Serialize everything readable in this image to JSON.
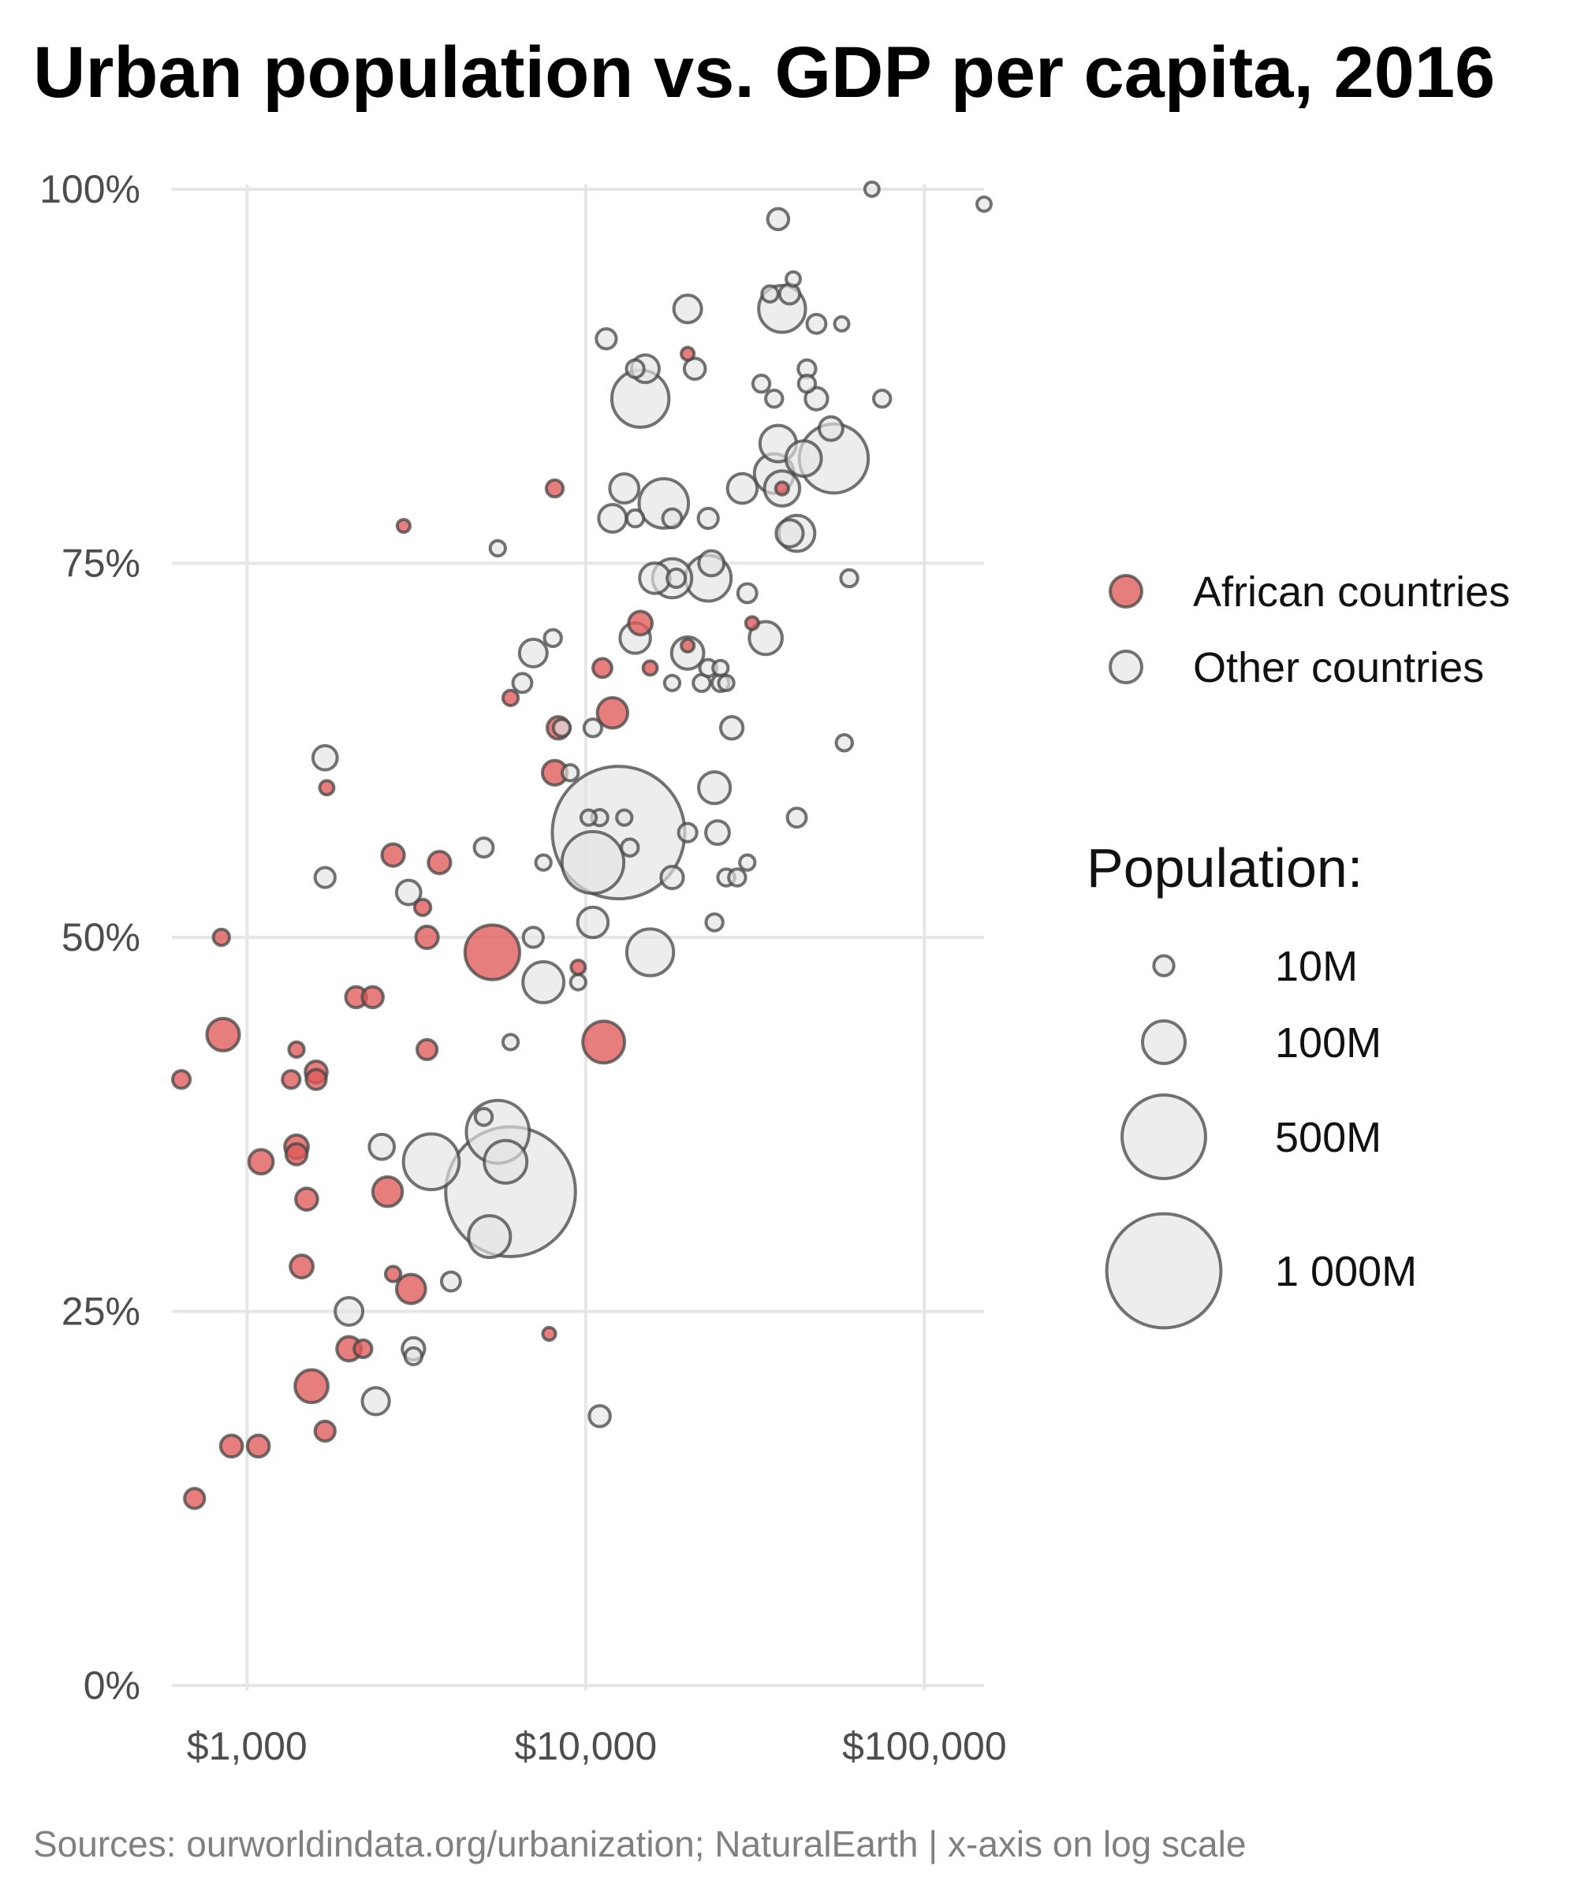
{
  "chart_data": {
    "type": "scatter",
    "title": "Urban population vs. GDP per capita, 2016",
    "caption": "Sources: ourworldindata.org/urbanization; NaturalEarth | x-axis on log scale",
    "x_scale": "log",
    "xlim": [
      600,
      150000
    ],
    "ylim": [
      0,
      100
    ],
    "x_ticks": [
      {
        "value": 1000,
        "label": "$1,000"
      },
      {
        "value": 10000,
        "label": "$10,000"
      },
      {
        "value": 100000,
        "label": "$100,000"
      }
    ],
    "y_ticks": [
      {
        "value": 0,
        "label": "0%"
      },
      {
        "value": 25,
        "label": "25%"
      },
      {
        "value": 50,
        "label": "50%"
      },
      {
        "value": 75,
        "label": "75%"
      },
      {
        "value": 100,
        "label": "100%"
      }
    ],
    "grid": true,
    "colors": {
      "african": "#e05a5a",
      "other": "#e3e3e3",
      "stroke": "#444444"
    },
    "legend": {
      "placement": "right",
      "group_entries": [
        {
          "key": "african",
          "label": "African countries"
        },
        {
          "key": "other",
          "label": "Other countries"
        }
      ],
      "size_title": "Population:",
      "size_entries": [
        {
          "pop": 10,
          "label": "10M"
        },
        {
          "pop": 100,
          "label": "100M"
        },
        {
          "pop": 500,
          "label": "500M"
        },
        {
          "pop": 1000,
          "label": "1 000M"
        }
      ]
    },
    "series": [
      {
        "key": "other",
        "points": [
          [
            12500,
            57,
            1380
          ],
          [
            6000,
            33,
            1320
          ],
          [
            54000,
            82,
            323
          ],
          [
            10500,
            55,
            250
          ],
          [
            5500,
            37,
            260
          ],
          [
            14500,
            86,
            207
          ],
          [
            3500,
            35,
            195
          ],
          [
            15500,
            49,
            127
          ],
          [
            38000,
            92,
            127
          ],
          [
            17000,
            79,
            145
          ],
          [
            23000,
            74,
            120
          ],
          [
            5800,
            35,
            100
          ],
          [
            5200,
            30,
            95
          ],
          [
            7500,
            47,
            90
          ],
          [
            36000,
            81,
            82
          ],
          [
            37000,
            83,
            66
          ],
          [
            38000,
            80,
            60
          ],
          [
            42000,
            77,
            64
          ],
          [
            44000,
            82,
            61
          ],
          [
            18000,
            74,
            80
          ],
          [
            34000,
            70,
            50
          ],
          [
            20000,
            69,
            47
          ],
          [
            24000,
            60,
            45
          ],
          [
            10500,
            51,
            40
          ],
          [
            16000,
            74,
            40
          ],
          [
            14000,
            70,
            40
          ],
          [
            29000,
            80,
            37
          ],
          [
            13000,
            80,
            35
          ],
          [
            20000,
            92,
            30
          ],
          [
            15000,
            88,
            30
          ],
          [
            12000,
            78,
            30
          ],
          [
            7000,
            69,
            30
          ],
          [
            2000,
            25,
            30
          ],
          [
            2400,
            19,
            28
          ],
          [
            2500,
            36,
            22
          ],
          [
            3000,
            53,
            20
          ],
          [
            23500,
            75,
            22
          ],
          [
            40000,
            77,
            28
          ],
          [
            1700,
            62,
            20
          ],
          [
            24500,
            57,
            18
          ],
          [
            3100,
            22.5,
            15
          ],
          [
            37000,
            98,
            12
          ],
          [
            27000,
            64,
            15
          ],
          [
            18000,
            54,
            15
          ],
          [
            21000,
            88,
            12
          ],
          [
            48000,
            86,
            15
          ],
          [
            53000,
            84,
            18
          ],
          [
            11000,
            18,
            12
          ],
          [
            11500,
            90,
            10
          ],
          [
            7000,
            50,
            10
          ],
          [
            1700,
            54,
            10
          ],
          [
            23000,
            78,
            10
          ],
          [
            4000,
            27,
            8
          ],
          [
            5000,
            56,
            8
          ],
          [
            10500,
            64,
            6
          ],
          [
            6500,
            67,
            8
          ],
          [
            18000,
            78,
            8
          ],
          [
            40000,
            93,
            10
          ],
          [
            48000,
            91,
            8
          ],
          [
            30000,
            73,
            8
          ],
          [
            42000,
            58,
            8
          ],
          [
            18500,
            74,
            7
          ],
          [
            20000,
            57,
            7
          ],
          [
            22000,
            67,
            5
          ],
          [
            25000,
            67,
            5
          ],
          [
            26000,
            54,
            5
          ],
          [
            28000,
            54,
            5
          ],
          [
            14000,
            88,
            6
          ],
          [
            24000,
            51,
            5
          ],
          [
            60000,
            74,
            5
          ],
          [
            75000,
            86,
            5
          ],
          [
            45000,
            88,
            6
          ],
          [
            45000,
            87,
            5
          ],
          [
            35000,
            93,
            4
          ],
          [
            41000,
            94,
            2
          ],
          [
            57000,
            91,
            2
          ],
          [
            58000,
            63,
            4
          ],
          [
            70000,
            100,
            2
          ],
          [
            150000,
            99,
            2
          ],
          [
            33000,
            87,
            5
          ],
          [
            36000,
            86,
            5
          ],
          [
            23000,
            68,
            5
          ],
          [
            25000,
            68,
            3
          ],
          [
            8500,
            64,
            5
          ],
          [
            11000,
            58,
            4
          ],
          [
            13000,
            58,
            3
          ],
          [
            10200,
            58,
            3
          ],
          [
            7500,
            55,
            3
          ],
          [
            9500,
            47,
            3
          ],
          [
            5000,
            38,
            5
          ],
          [
            6000,
            43,
            3
          ],
          [
            14000,
            78,
            5
          ],
          [
            8000,
            70,
            5
          ],
          [
            9000,
            61,
            4
          ],
          [
            13500,
            56,
            5
          ],
          [
            18000,
            67,
            3
          ],
          [
            26000,
            67,
            3
          ],
          [
            5500,
            76,
            3
          ],
          [
            3100,
            22,
            5
          ],
          [
            30000,
            55,
            3
          ]
        ]
      },
      {
        "key": "african",
        "points": [
          [
            5300,
            49,
            186
          ],
          [
            11300,
            43,
            95
          ],
          [
            850,
            43.5,
            48
          ],
          [
            1550,
            20,
            50
          ],
          [
            3050,
            26.5,
            35
          ],
          [
            2600,
            33,
            37
          ],
          [
            12000,
            65,
            40
          ],
          [
            1100,
            35,
            20
          ],
          [
            1400,
            36,
            18
          ],
          [
            1450,
            28,
            16
          ],
          [
            1500,
            32.5,
            14
          ],
          [
            1600,
            41,
            14
          ],
          [
            2000,
            22.5,
            20
          ],
          [
            900,
            16,
            14
          ],
          [
            1080,
            16,
            14
          ],
          [
            3400,
            50,
            15
          ],
          [
            3700,
            55,
            15
          ],
          [
            2700,
            55.5,
            15
          ],
          [
            8100,
            61,
            21
          ],
          [
            2100,
            46,
            12
          ],
          [
            2350,
            46,
            12
          ],
          [
            1600,
            40.5,
            10
          ],
          [
            14500,
            71,
            18
          ],
          [
            8300,
            64,
            15
          ],
          [
            3400,
            42.5,
            10
          ],
          [
            700,
            12.5,
            10
          ],
          [
            1700,
            17,
            10
          ],
          [
            640,
            40.5,
            6
          ],
          [
            1400,
            35.5,
            12
          ],
          [
            11200,
            68,
            8
          ],
          [
            1350,
            40.5,
            6
          ],
          [
            2200,
            22.5,
            6
          ],
          [
            8100,
            80,
            5
          ],
          [
            3300,
            52,
            4
          ],
          [
            2700,
            27.5,
            3
          ],
          [
            1400,
            42.5,
            3
          ],
          [
            1720,
            60,
            2
          ],
          [
            15500,
            68,
            2
          ],
          [
            840,
            50,
            4
          ],
          [
            2900,
            77.5,
            1
          ],
          [
            7800,
            23.5,
            1
          ],
          [
            6000,
            66,
            3
          ],
          [
            20000,
            89,
            1
          ],
          [
            9500,
            48,
            2
          ],
          [
            38000,
            80,
            1
          ],
          [
            20000,
            69.5,
            1
          ],
          [
            31000,
            71,
            1
          ]
        ]
      }
    ]
  }
}
